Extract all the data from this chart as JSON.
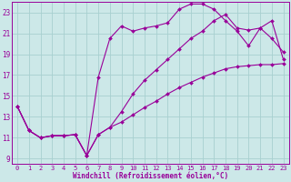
{
  "xlabel": "Windchill (Refroidissement éolien,°C)",
  "bg_color": "#cce8e8",
  "line_color": "#990099",
  "grid_color": "#a8d0d0",
  "xlim": [
    -0.5,
    23.5
  ],
  "ylim": [
    8.5,
    24.0
  ],
  "xticks": [
    0,
    1,
    2,
    3,
    4,
    5,
    6,
    7,
    8,
    9,
    10,
    11,
    12,
    13,
    14,
    15,
    16,
    17,
    18,
    19,
    20,
    21,
    22,
    23
  ],
  "yticks": [
    9,
    11,
    13,
    15,
    17,
    19,
    21,
    23
  ],
  "line1_x": [
    0,
    1,
    2,
    3,
    4,
    5,
    6,
    7,
    8,
    9,
    10,
    11,
    12,
    13,
    14,
    15,
    16,
    17,
    18,
    19,
    20,
    21,
    22,
    23
  ],
  "line1_y": [
    14.0,
    11.7,
    11.0,
    11.2,
    11.2,
    11.3,
    9.3,
    11.3,
    12.0,
    12.5,
    13.2,
    13.9,
    14.5,
    15.2,
    15.8,
    16.3,
    16.8,
    17.2,
    17.6,
    17.8,
    17.9,
    18.0,
    18.0,
    18.1
  ],
  "line2_x": [
    0,
    1,
    2,
    3,
    4,
    5,
    6,
    7,
    8,
    9,
    10,
    11,
    12,
    13,
    14,
    15,
    16,
    17,
    18,
    19,
    20,
    21,
    22,
    23
  ],
  "line2_y": [
    14.0,
    11.7,
    11.0,
    11.2,
    11.2,
    11.3,
    9.3,
    16.8,
    20.5,
    21.7,
    21.2,
    21.5,
    21.7,
    22.0,
    23.3,
    23.8,
    23.8,
    23.3,
    22.2,
    21.2,
    19.8,
    21.5,
    20.5,
    19.2
  ],
  "line3_x": [
    0,
    1,
    2,
    3,
    4,
    5,
    6,
    7,
    8,
    9,
    10,
    11,
    12,
    13,
    14,
    15,
    16,
    17,
    18,
    19,
    20,
    21,
    22,
    23
  ],
  "line3_y": [
    14.0,
    11.7,
    11.0,
    11.2,
    11.2,
    11.3,
    9.3,
    11.3,
    12.0,
    13.5,
    15.2,
    16.5,
    17.5,
    18.5,
    19.5,
    20.5,
    21.2,
    22.2,
    22.8,
    21.5,
    21.3,
    21.5,
    22.2,
    18.5
  ]
}
